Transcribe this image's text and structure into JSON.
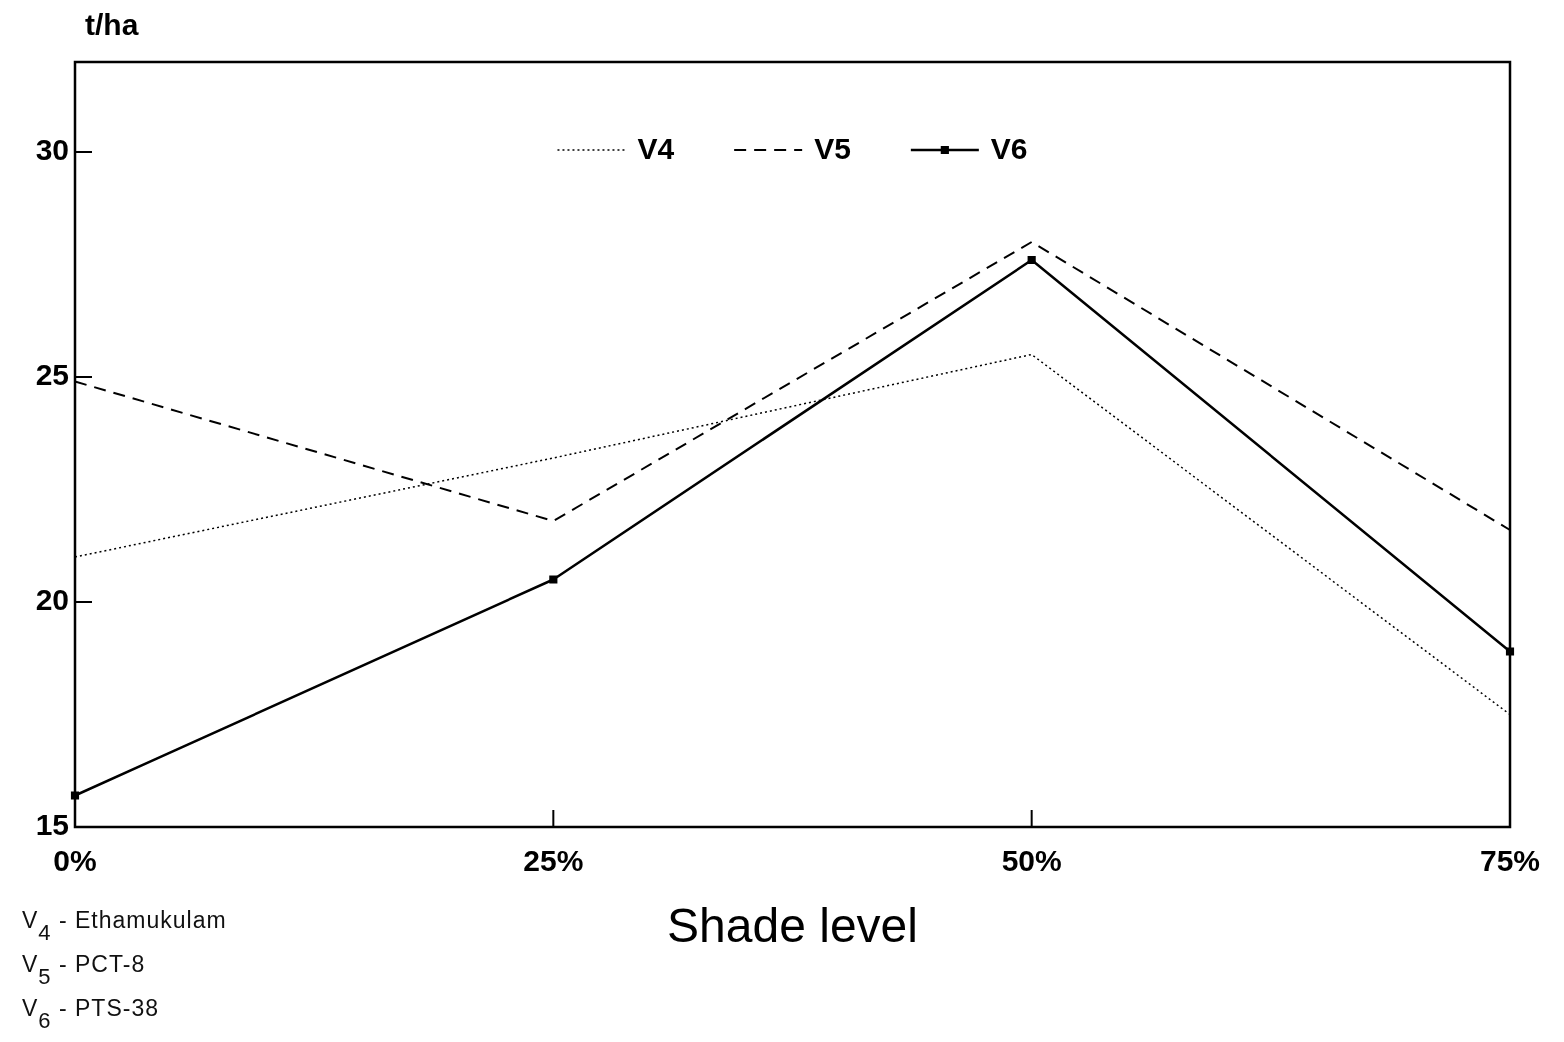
{
  "chart_data": {
    "type": "line",
    "ylabel": "t/ha",
    "xlabel": "Shade level",
    "categories": [
      "0%",
      "25%",
      "50%",
      "75%"
    ],
    "series": [
      {
        "name": "V4",
        "color": "#000000",
        "values": [
          21,
          23.2,
          25.5,
          17.5
        ],
        "line_style": "dotted",
        "marker": "none"
      },
      {
        "name": "V5",
        "color": "#000000",
        "values": [
          24.9,
          21.8,
          28,
          21.6
        ],
        "line_style": "dashed",
        "marker": "none"
      },
      {
        "name": "V6",
        "color": "#000000",
        "values": [
          15.7,
          20.5,
          27.6,
          18.9
        ],
        "line_style": "solid",
        "marker": "square"
      }
    ],
    "ylim": [
      15,
      32
    ],
    "yticks": [
      15,
      20,
      25,
      30
    ],
    "legend": "top",
    "annotations": [
      "V$_{4}$ - Ethamukulam",
      "V$_{5}$ - PCT-8",
      "V$_{6}$ - PTS-38"
    ]
  }
}
